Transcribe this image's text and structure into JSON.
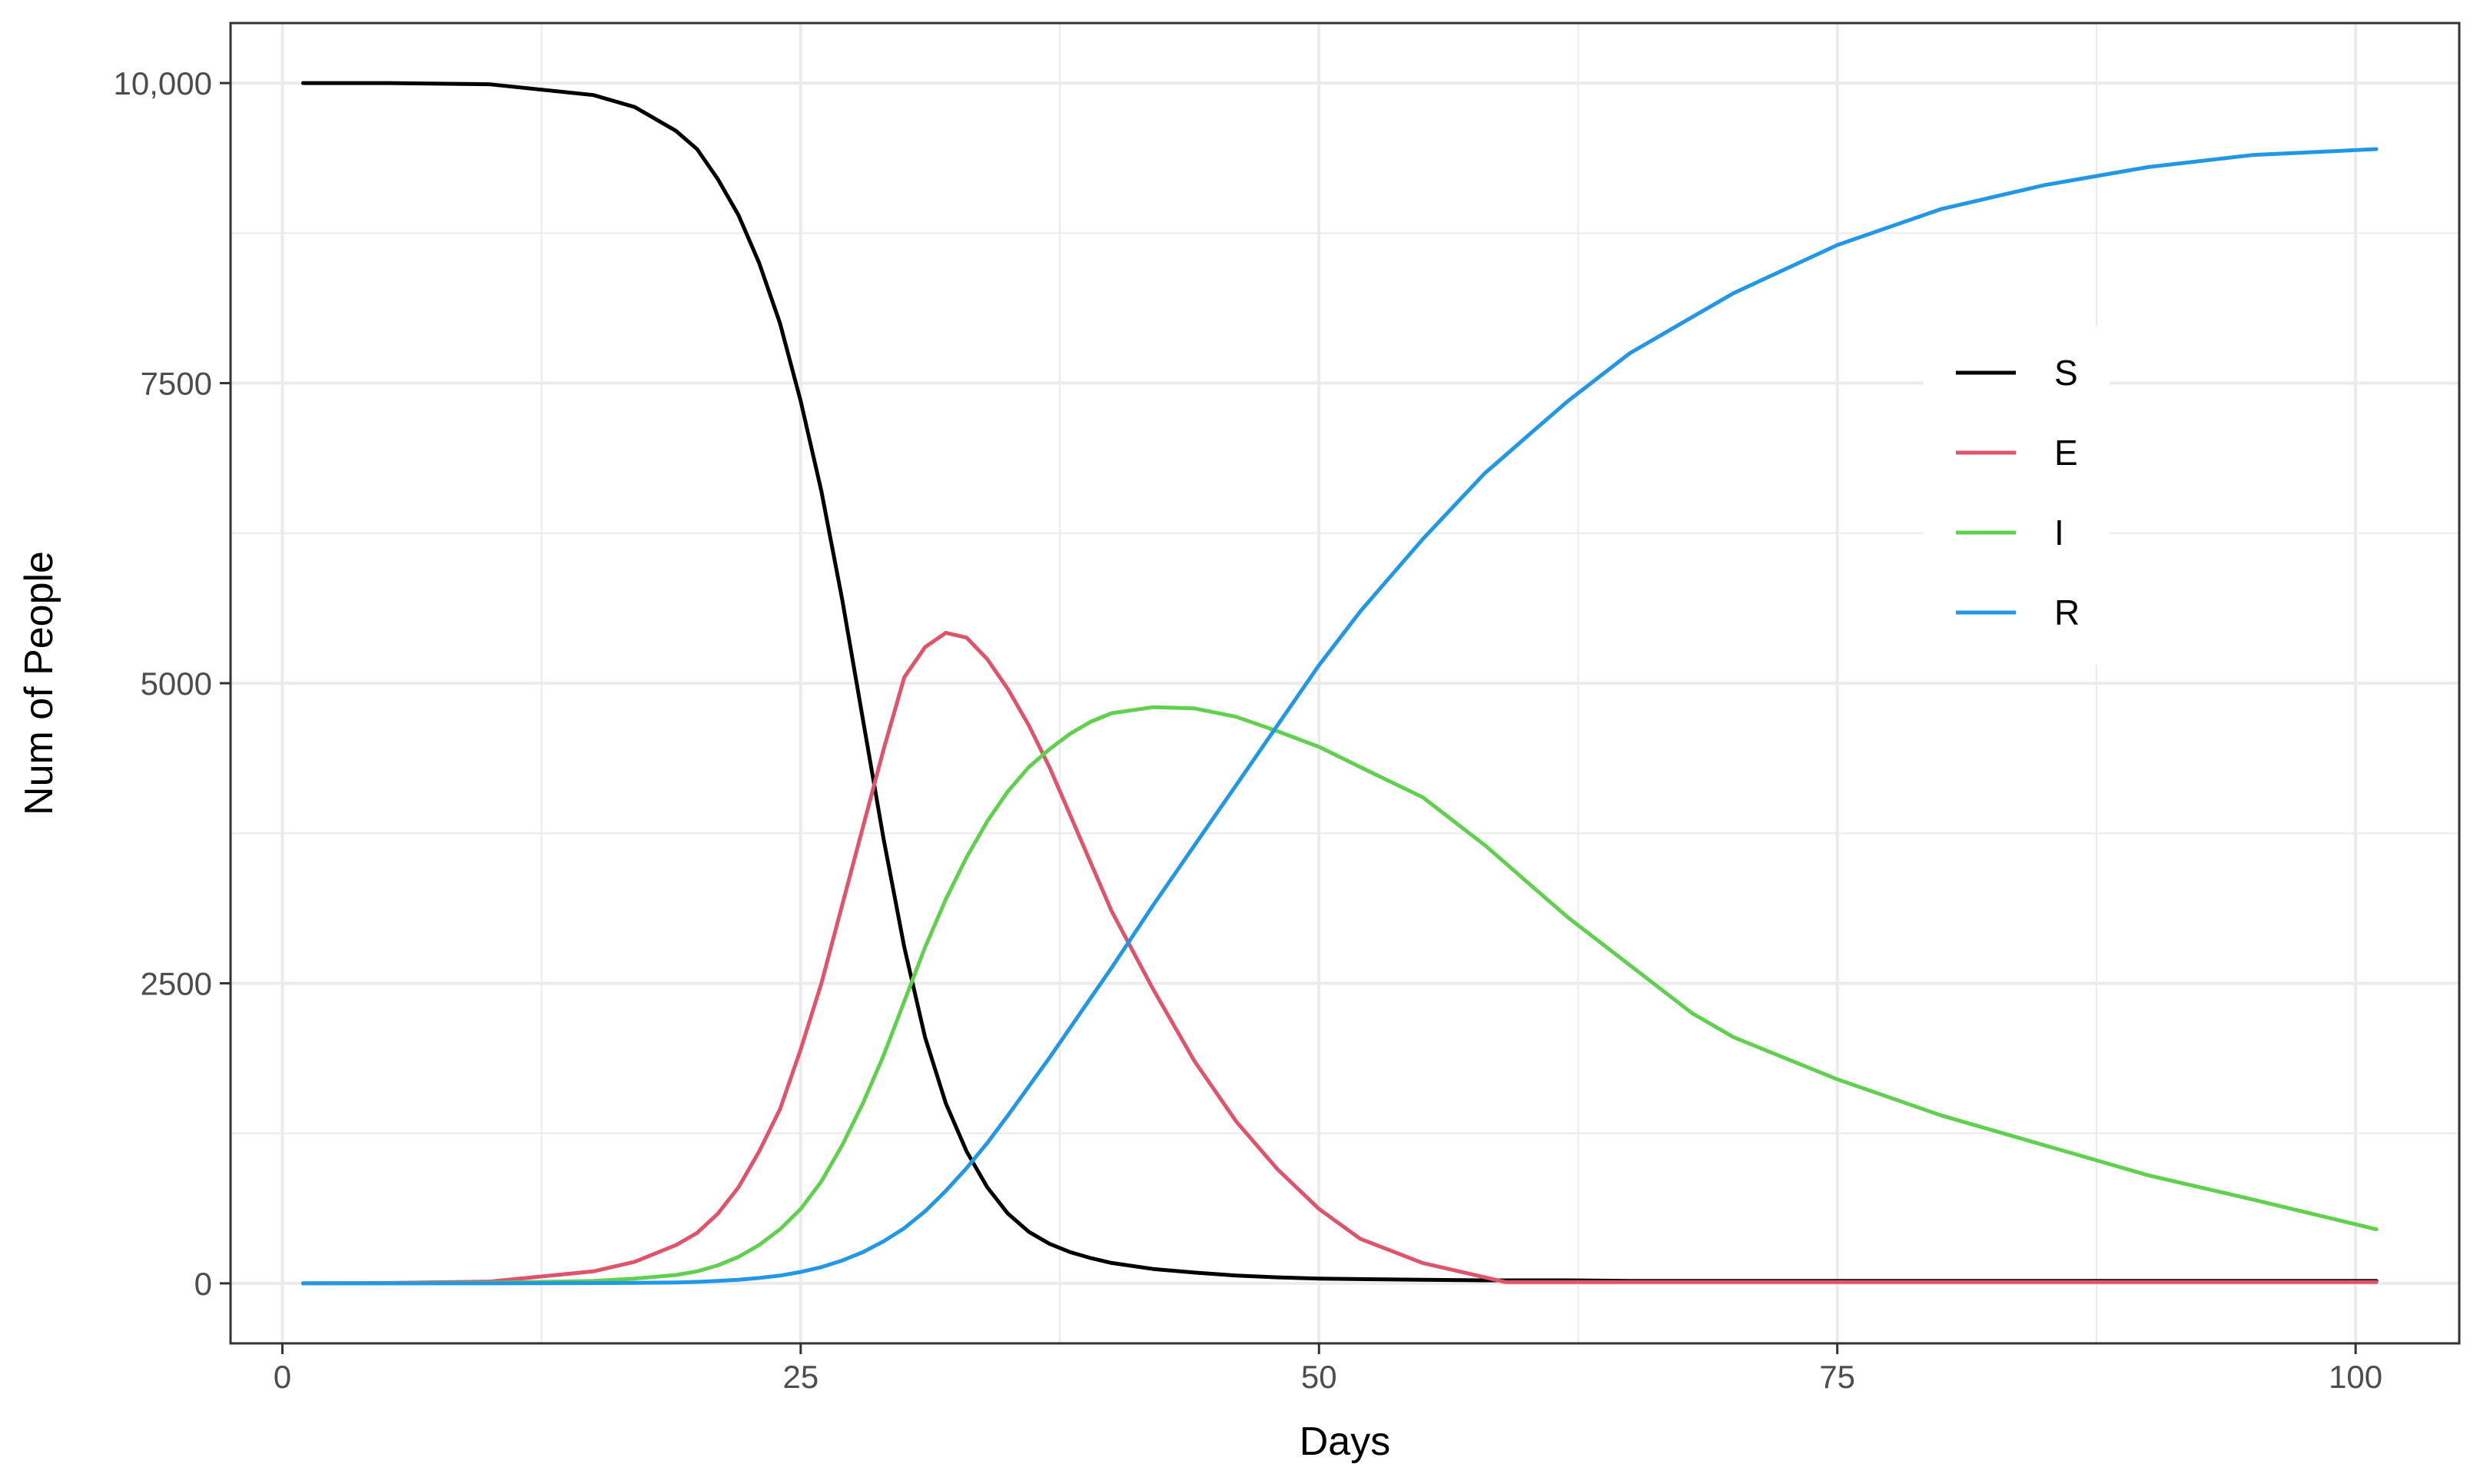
{
  "chart_data": {
    "type": "line",
    "title": "",
    "xlabel": "Days",
    "ylabel": "Num of People",
    "xlim": [
      -2.5,
      105
    ],
    "ylim": [
      -500,
      10500
    ],
    "x_ticks": [
      0,
      25,
      50,
      75,
      100
    ],
    "x_tick_labels": [
      "0",
      "25",
      "50",
      "75",
      "100"
    ],
    "y_ticks": [
      0,
      2500,
      5000,
      7500,
      10000
    ],
    "y_tick_labels": [
      "0",
      "2500",
      "5000",
      "7500",
      "10,000"
    ],
    "grid": true,
    "legend_position": "right",
    "x": [
      1,
      5,
      10,
      15,
      17,
      19,
      20,
      21,
      22,
      23,
      24,
      25,
      26,
      27,
      28,
      29,
      30,
      31,
      32,
      33,
      34,
      35,
      36,
      37,
      38,
      39,
      40,
      42,
      44,
      46,
      48,
      50,
      52,
      55,
      58,
      59,
      60,
      62,
      65,
      68,
      70,
      75,
      80,
      85,
      90,
      95,
      101
    ],
    "series": [
      {
        "name": "S",
        "color": "#000000",
        "values": [
          10000,
          10000,
          9990,
          9900,
          9800,
          9600,
          9450,
          9200,
          8900,
          8500,
          8000,
          7350,
          6600,
          5700,
          4700,
          3700,
          2800,
          2050,
          1500,
          1100,
          800,
          580,
          430,
          330,
          260,
          210,
          170,
          120,
          90,
          65,
          50,
          40,
          35,
          30,
          25,
          25,
          25,
          25,
          20,
          20,
          20,
          20,
          20,
          20,
          20,
          20,
          20
        ]
      },
      {
        "name": "E",
        "color": "#DF536B",
        "values": [
          0,
          3,
          15,
          100,
          180,
          320,
          420,
          580,
          800,
          1100,
          1450,
          1950,
          2500,
          3150,
          3800,
          4450,
          5050,
          5300,
          5420,
          5380,
          5200,
          4950,
          4650,
          4300,
          3900,
          3500,
          3100,
          2450,
          1850,
          1350,
          950,
          620,
          370,
          170,
          50,
          10,
          10,
          10,
          10,
          10,
          10,
          10,
          10,
          10,
          10,
          10,
          10
        ]
      },
      {
        "name": "I",
        "color": "#61D04F",
        "values": [
          0,
          1,
          5,
          20,
          40,
          70,
          100,
          150,
          220,
          320,
          450,
          620,
          850,
          1150,
          1500,
          1900,
          2350,
          2800,
          3200,
          3550,
          3850,
          4100,
          4300,
          4450,
          4580,
          4680,
          4750,
          4800,
          4790,
          4720,
          4600,
          4470,
          4300,
          4050,
          3650,
          3500,
          3350,
          3050,
          2650,
          2250,
          2050,
          1700,
          1400,
          1150,
          900,
          700,
          450
        ]
      },
      {
        "name": "R",
        "color": "#2297E6",
        "values": [
          0,
          0,
          0,
          2,
          4,
          8,
          12,
          20,
          30,
          45,
          65,
          95,
          135,
          190,
          260,
          350,
          460,
          600,
          770,
          960,
          1170,
          1400,
          1640,
          1880,
          2130,
          2380,
          2630,
          3150,
          3650,
          4150,
          4650,
          5150,
          5600,
          6200,
          6750,
          6900,
          7050,
          7350,
          7750,
          8050,
          8250,
          8650,
          8950,
          9150,
          9300,
          9400,
          9450
        ]
      }
    ]
  }
}
